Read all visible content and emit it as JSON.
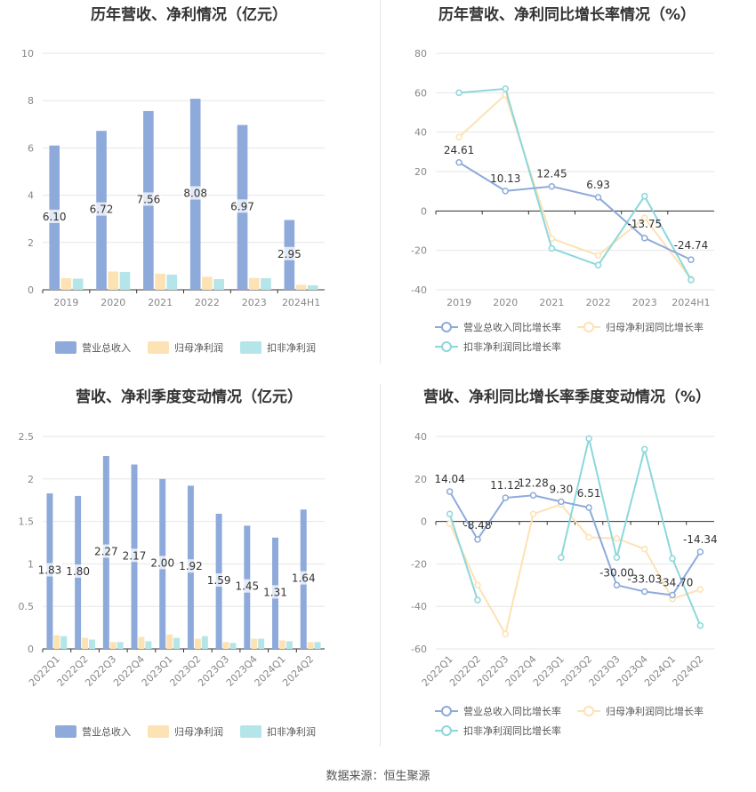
{
  "source_label": "数据来源：恒生聚源",
  "colors": {
    "revenue": "#8eaadb",
    "net_profit": "#fde2b3",
    "deducted_profit": "#b4e5e8",
    "rev_line": "#8eaadb",
    "np_line": "#fde2b3",
    "dp_line": "#8cd7dc",
    "grid": "#e6e6e6",
    "text": "#666666"
  },
  "chart_data": [
    {
      "id": "annual-amounts",
      "type": "bar",
      "title": "历年营收、净利情况（亿元）",
      "categories": [
        "2019",
        "2020",
        "2021",
        "2022",
        "2023",
        "2024H1"
      ],
      "ylim": [
        0,
        10
      ],
      "yticks": [
        0,
        2,
        4,
        6,
        8,
        10
      ],
      "series": [
        {
          "name": "营业总收入",
          "values": [
            6.1,
            6.72,
            7.56,
            8.08,
            6.97,
            2.95
          ],
          "labels": [
            "6.10",
            "6.72",
            "7.56",
            "8.08",
            "6.97",
            "2.95"
          ]
        },
        {
          "name": "归母净利润",
          "values": [
            0.49,
            0.77,
            0.68,
            0.55,
            0.5,
            0.21
          ]
        },
        {
          "name": "扣非净利润",
          "values": [
            0.47,
            0.75,
            0.64,
            0.45,
            0.49,
            0.19
          ]
        }
      ]
    },
    {
      "id": "annual-growth",
      "type": "line",
      "title": "历年营收、净利同比增长率情况（%）",
      "categories": [
        "2019",
        "2020",
        "2021",
        "2022",
        "2023",
        "2024H1"
      ],
      "ylim": [
        -40,
        80
      ],
      "yticks": [
        -40,
        -20,
        0,
        20,
        40,
        60,
        80
      ],
      "series": [
        {
          "name": "营业总收入同比增长率",
          "values": [
            24.61,
            10.13,
            12.45,
            6.93,
            -13.75,
            -24.74
          ],
          "labels": [
            "24.61",
            "10.13",
            "12.45",
            "6.93",
            "-13.75",
            "-24.74"
          ]
        },
        {
          "name": "归母净利润同比增长率",
          "values": [
            37.5,
            59.0,
            -14.0,
            -22.5,
            -3.5,
            -34.5
          ]
        },
        {
          "name": "扣非净利润同比增长率",
          "values": [
            60.0,
            62.0,
            -19.0,
            -27.5,
            7.5,
            -35.0
          ]
        }
      ]
    },
    {
      "id": "quarterly-amounts",
      "type": "bar",
      "title": "营收、净利季度变动情况（亿元）",
      "categories": [
        "2022Q1",
        "2022Q2",
        "2022Q3",
        "2022Q4",
        "2023Q1",
        "2023Q2",
        "2023Q3",
        "2023Q4",
        "2024Q1",
        "2024Q2"
      ],
      "ylim": [
        0,
        2.5
      ],
      "yticks": [
        0,
        0.5,
        1,
        1.5,
        2,
        2.5
      ],
      "ytick_labels": [
        "0",
        "0.5",
        "1",
        "1.5",
        "2",
        "2.5"
      ],
      "series": [
        {
          "name": "营业总收入",
          "values": [
            1.83,
            1.8,
            2.27,
            2.17,
            2.0,
            1.92,
            1.59,
            1.45,
            1.31,
            1.64
          ],
          "labels": [
            "1.83",
            "1.80",
            "2.27",
            "2.17",
            "2.00",
            "1.92",
            "1.59",
            "1.45",
            "1.31",
            "1.64"
          ]
        },
        {
          "name": "归母净利润",
          "values": [
            0.16,
            0.13,
            0.08,
            0.14,
            0.17,
            0.12,
            0.08,
            0.12,
            0.1,
            0.08
          ]
        },
        {
          "name": "扣非净利润",
          "values": [
            0.15,
            0.11,
            0.08,
            0.09,
            0.13,
            0.15,
            0.07,
            0.12,
            0.09,
            0.08
          ]
        }
      ]
    },
    {
      "id": "quarterly-growth",
      "type": "line",
      "title": "营收、净利同比增长率季度变动情况（%）",
      "categories": [
        "2022Q1",
        "2022Q2",
        "2022Q3",
        "2022Q4",
        "2023Q1",
        "2023Q2",
        "2023Q3",
        "2023Q4",
        "2024Q1",
        "2024Q2"
      ],
      "ylim": [
        -60,
        40
      ],
      "yticks": [
        -60,
        -40,
        -20,
        0,
        20,
        40
      ],
      "series": [
        {
          "name": "营业总收入同比增长率",
          "values": [
            14.04,
            -8.48,
            11.12,
            12.28,
            9.3,
            6.51,
            -30.0,
            -33.03,
            -34.7,
            -14.34
          ],
          "labels": [
            "14.04",
            "-8.48",
            "11.12",
            "12.28",
            "9.30",
            "6.51",
            "-30.00",
            "-33.03",
            "-34.70",
            "-14.34"
          ]
        },
        {
          "name": "归母净利润同比增长率",
          "values": [
            -1.0,
            -30.0,
            -53.0,
            3.5,
            8.0,
            -7.5,
            -8.0,
            -13.0,
            -36.5,
            -32.0
          ]
        },
        {
          "name": "扣非净利润同比增长率",
          "values": [
            3.5,
            -37.0,
            null,
            null,
            -17.0,
            39.0,
            -17.0,
            34.0,
            -17.5,
            -49.0
          ]
        }
      ]
    }
  ]
}
